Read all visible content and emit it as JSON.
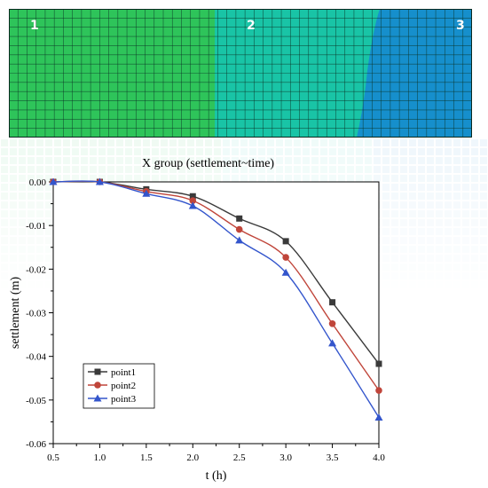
{
  "mesh": {
    "labels": [
      "1",
      "2",
      "3"
    ],
    "colors": {
      "green": "#2ec45a",
      "teal": "#19c4a6",
      "blue": "#168fcc",
      "grid_line": "#0b3326"
    }
  },
  "chart_data": {
    "type": "line",
    "title": "X group (settlement~time)",
    "xlabel": "t (h)",
    "ylabel": "settlement (m)",
    "xlim": [
      0.5,
      4.0
    ],
    "ylim": [
      -0.06,
      0.0
    ],
    "xticks": [
      0.5,
      1.0,
      1.5,
      2.0,
      2.5,
      3.0,
      3.5,
      4.0
    ],
    "yticks": [
      0.0,
      -0.01,
      -0.02,
      -0.03,
      -0.04,
      -0.05,
      -0.06
    ],
    "grid": false,
    "legend_position": "bottom-left",
    "x": [
      0.5,
      1.0,
      1.5,
      2.0,
      2.5,
      3.0,
      3.5,
      4.0
    ],
    "series": [
      {
        "name": "point1",
        "marker": "square",
        "color": "#3a3a3a",
        "values": [
          0.0,
          0.0,
          -0.0017,
          -0.0033,
          -0.0084,
          -0.0136,
          -0.0276,
          -0.0417
        ]
      },
      {
        "name": "point2",
        "marker": "circle",
        "color": "#c0453a",
        "values": [
          0.0,
          0.0,
          -0.0022,
          -0.0043,
          -0.0109,
          -0.0173,
          -0.0325,
          -0.0478
        ]
      },
      {
        "name": "point3",
        "marker": "triangle",
        "color": "#3355cc",
        "values": [
          0.0,
          0.0,
          -0.0027,
          -0.0055,
          -0.0134,
          -0.0208,
          -0.037,
          -0.054
        ]
      }
    ]
  }
}
